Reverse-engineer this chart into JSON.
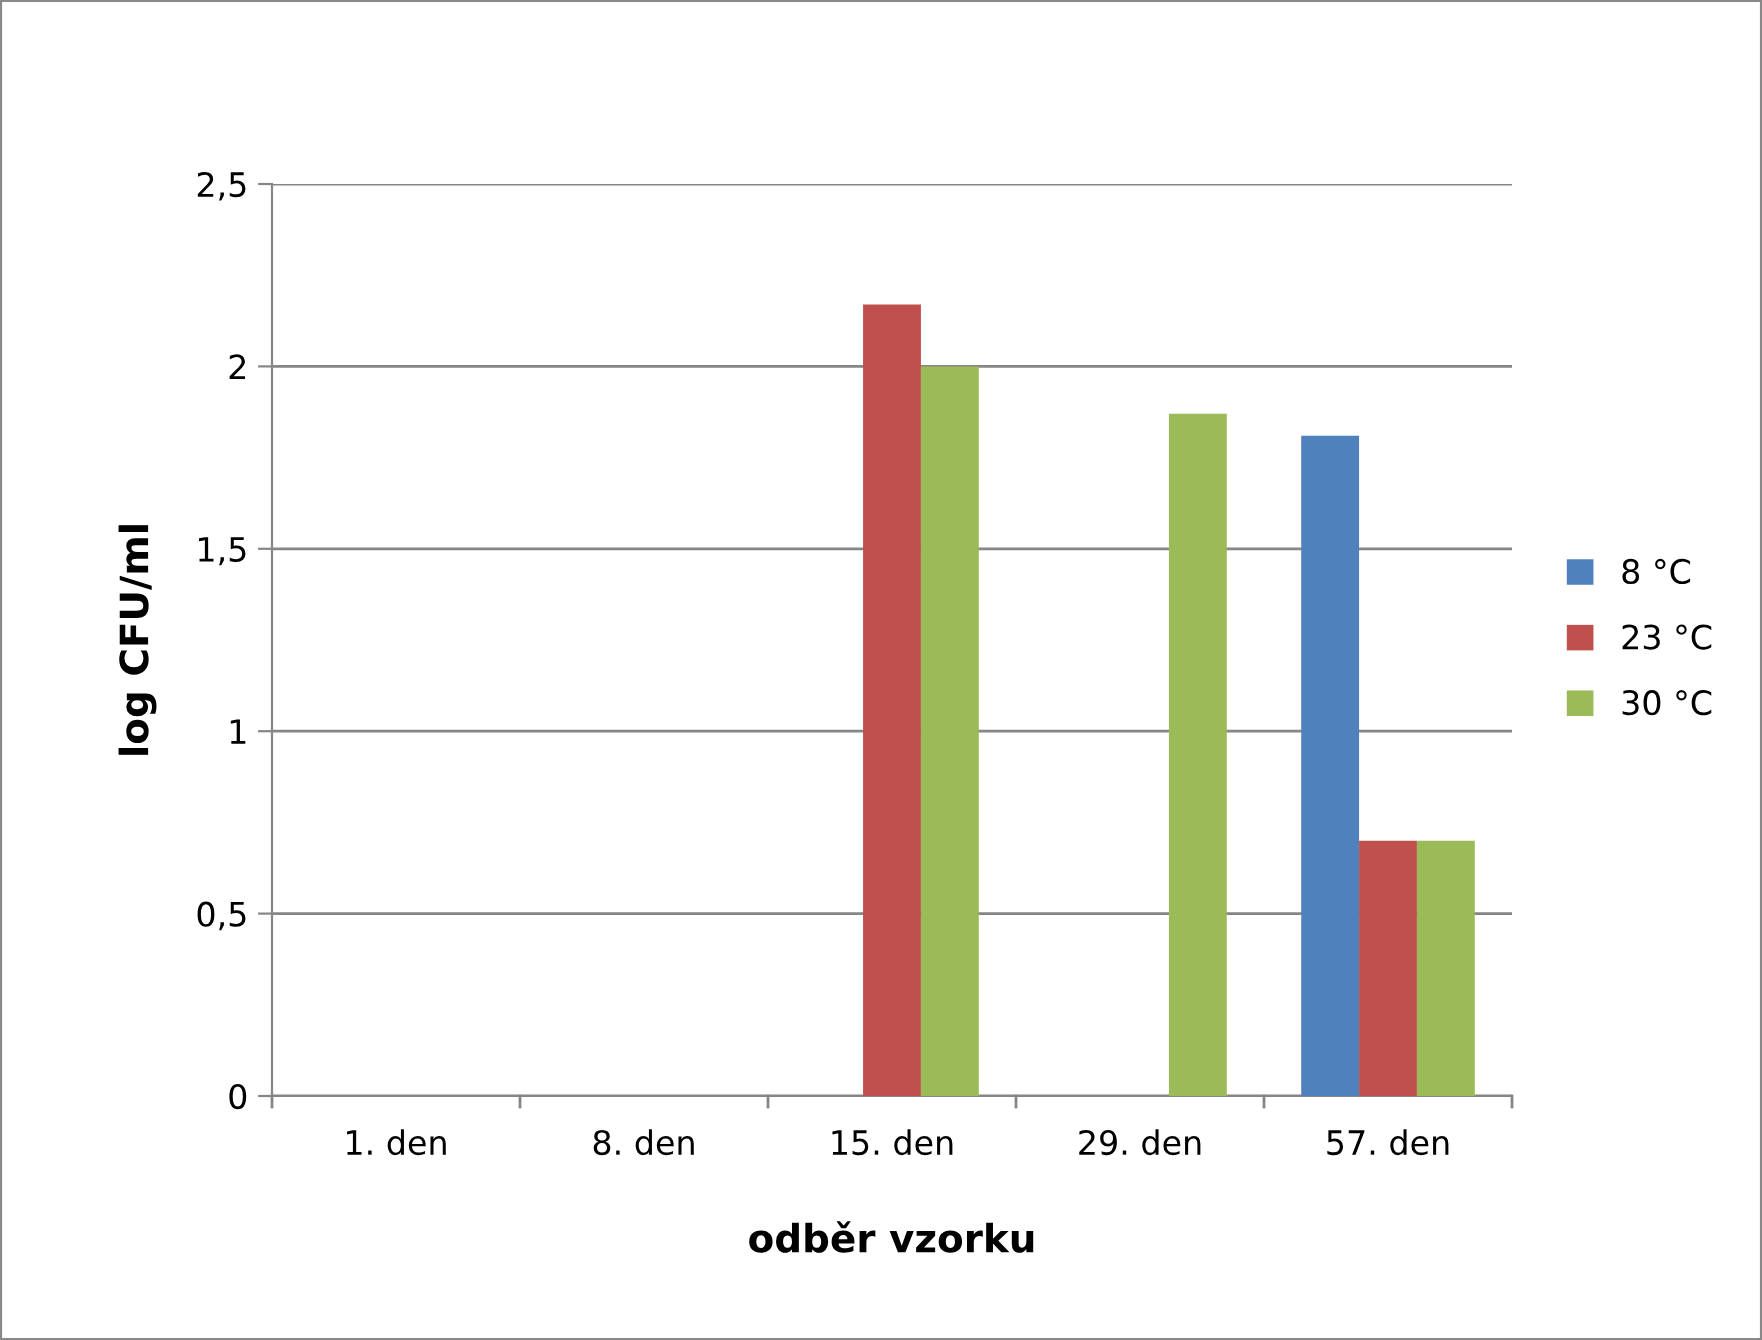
{
  "chart_data": {
    "type": "bar",
    "xlabel": "odběr vzorku",
    "ylabel": "log CFU/ml",
    "categories": [
      "1. den",
      "8. den",
      "15. den",
      "29. den",
      "57. den"
    ],
    "series": [
      {
        "name": "8 °C",
        "color": "#4f81bd",
        "values": [
          0,
          0,
          0,
          0,
          1.81
        ]
      },
      {
        "name": "23 °C",
        "color": "#c0504d",
        "values": [
          0,
          0,
          2.17,
          0,
          0.7
        ]
      },
      {
        "name": "30 °C",
        "color": "#9bbb59",
        "values": [
          0,
          0,
          2.0,
          1.87,
          0.7
        ]
      }
    ],
    "ylim": [
      0,
      2.5
    ],
    "yticks": [
      {
        "value": 0,
        "label": "0"
      },
      {
        "value": 0.5,
        "label": "0,5"
      },
      {
        "value": 1,
        "label": "1"
      },
      {
        "value": 1.5,
        "label": "1,5"
      },
      {
        "value": 2,
        "label": "2"
      },
      {
        "value": 2.5,
        "label": "2,5"
      }
    ],
    "grid": "y",
    "legend": "right"
  }
}
